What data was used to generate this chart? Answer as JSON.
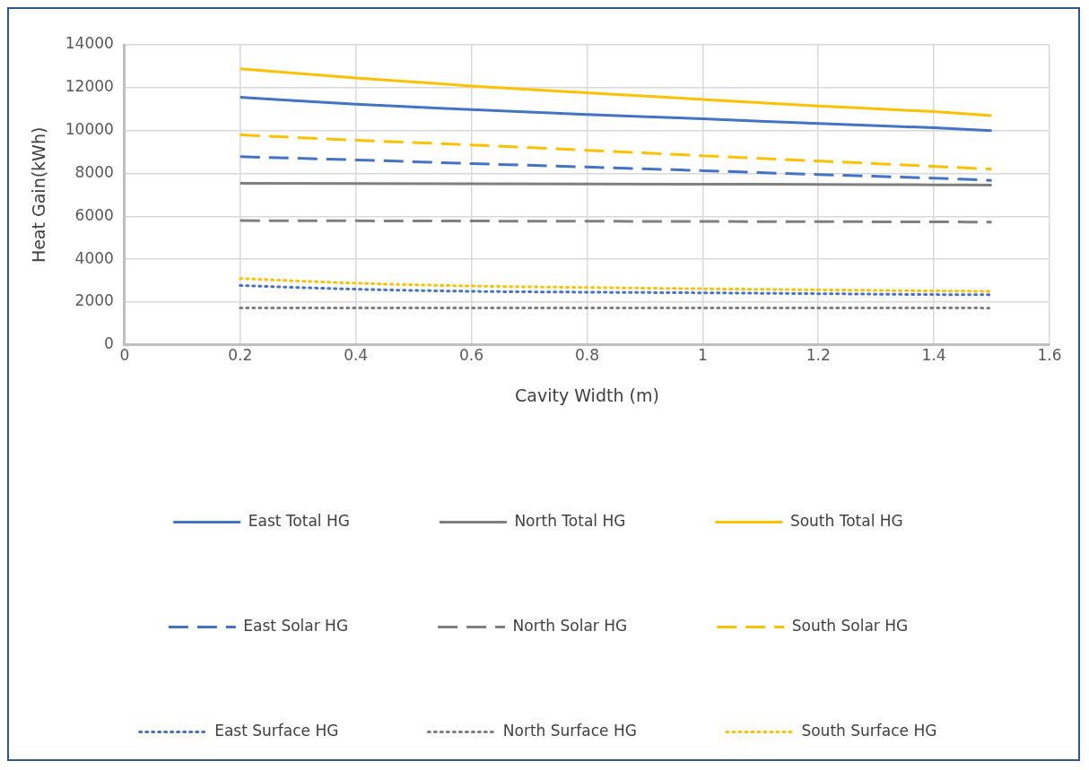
{
  "chart_data": {
    "type": "line",
    "xlabel": "Cavity Width (m)",
    "ylabel": "Heat Gain(kWh)",
    "x": [
      0.2,
      0.4,
      0.6,
      0.8,
      1.0,
      1.2,
      1.4,
      1.5
    ],
    "xlim": [
      0,
      1.6
    ],
    "xticks": [
      0,
      0.2,
      0.4,
      0.6,
      0.8,
      1,
      1.2,
      1.4,
      1.6
    ],
    "ylim": [
      0,
      14000
    ],
    "yticks": [
      0,
      2000,
      4000,
      6000,
      8000,
      10000,
      12000,
      14000
    ],
    "grid": true,
    "legend": "bottom",
    "marker": "none",
    "series": [
      {
        "name": "East Total HG",
        "color": "#4472c4",
        "line_style": "solid",
        "values": [
          11550,
          11230,
          10980,
          10750,
          10550,
          10330,
          10130,
          10000
        ]
      },
      {
        "name": "North Total HG",
        "color": "#7f7f7f",
        "line_style": "solid",
        "values": [
          7540,
          7530,
          7520,
          7510,
          7500,
          7490,
          7470,
          7460
        ]
      },
      {
        "name": "South Total HG",
        "color": "#ffc000",
        "line_style": "solid",
        "values": [
          12880,
          12450,
          12080,
          11760,
          11450,
          11150,
          10880,
          10700
        ]
      },
      {
        "name": "East Solar HG",
        "color": "#4472c4",
        "line_style": "dashed",
        "values": [
          8780,
          8630,
          8460,
          8300,
          8130,
          7950,
          7780,
          7680
        ]
      },
      {
        "name": "North Solar HG",
        "color": "#7f7f7f",
        "line_style": "dashed",
        "values": [
          5800,
          5790,
          5780,
          5770,
          5760,
          5750,
          5740,
          5730
        ]
      },
      {
        "name": "South Solar HG",
        "color": "#ffc000",
        "line_style": "dashed",
        "values": [
          9800,
          9550,
          9330,
          9080,
          8830,
          8580,
          8330,
          8200
        ]
      },
      {
        "name": "East Surface HG",
        "color": "#4472c4",
        "line_style": "dotted",
        "values": [
          2770,
          2600,
          2500,
          2460,
          2430,
          2390,
          2350,
          2340
        ]
      },
      {
        "name": "North Surface HG",
        "color": "#7f7f7f",
        "line_style": "dotted",
        "values": [
          1730,
          1730,
          1730,
          1730,
          1730,
          1730,
          1730,
          1720
        ]
      },
      {
        "name": "South Surface HG",
        "color": "#ffc000",
        "line_style": "dotted",
        "values": [
          3100,
          2880,
          2750,
          2680,
          2620,
          2570,
          2520,
          2500
        ]
      }
    ]
  }
}
